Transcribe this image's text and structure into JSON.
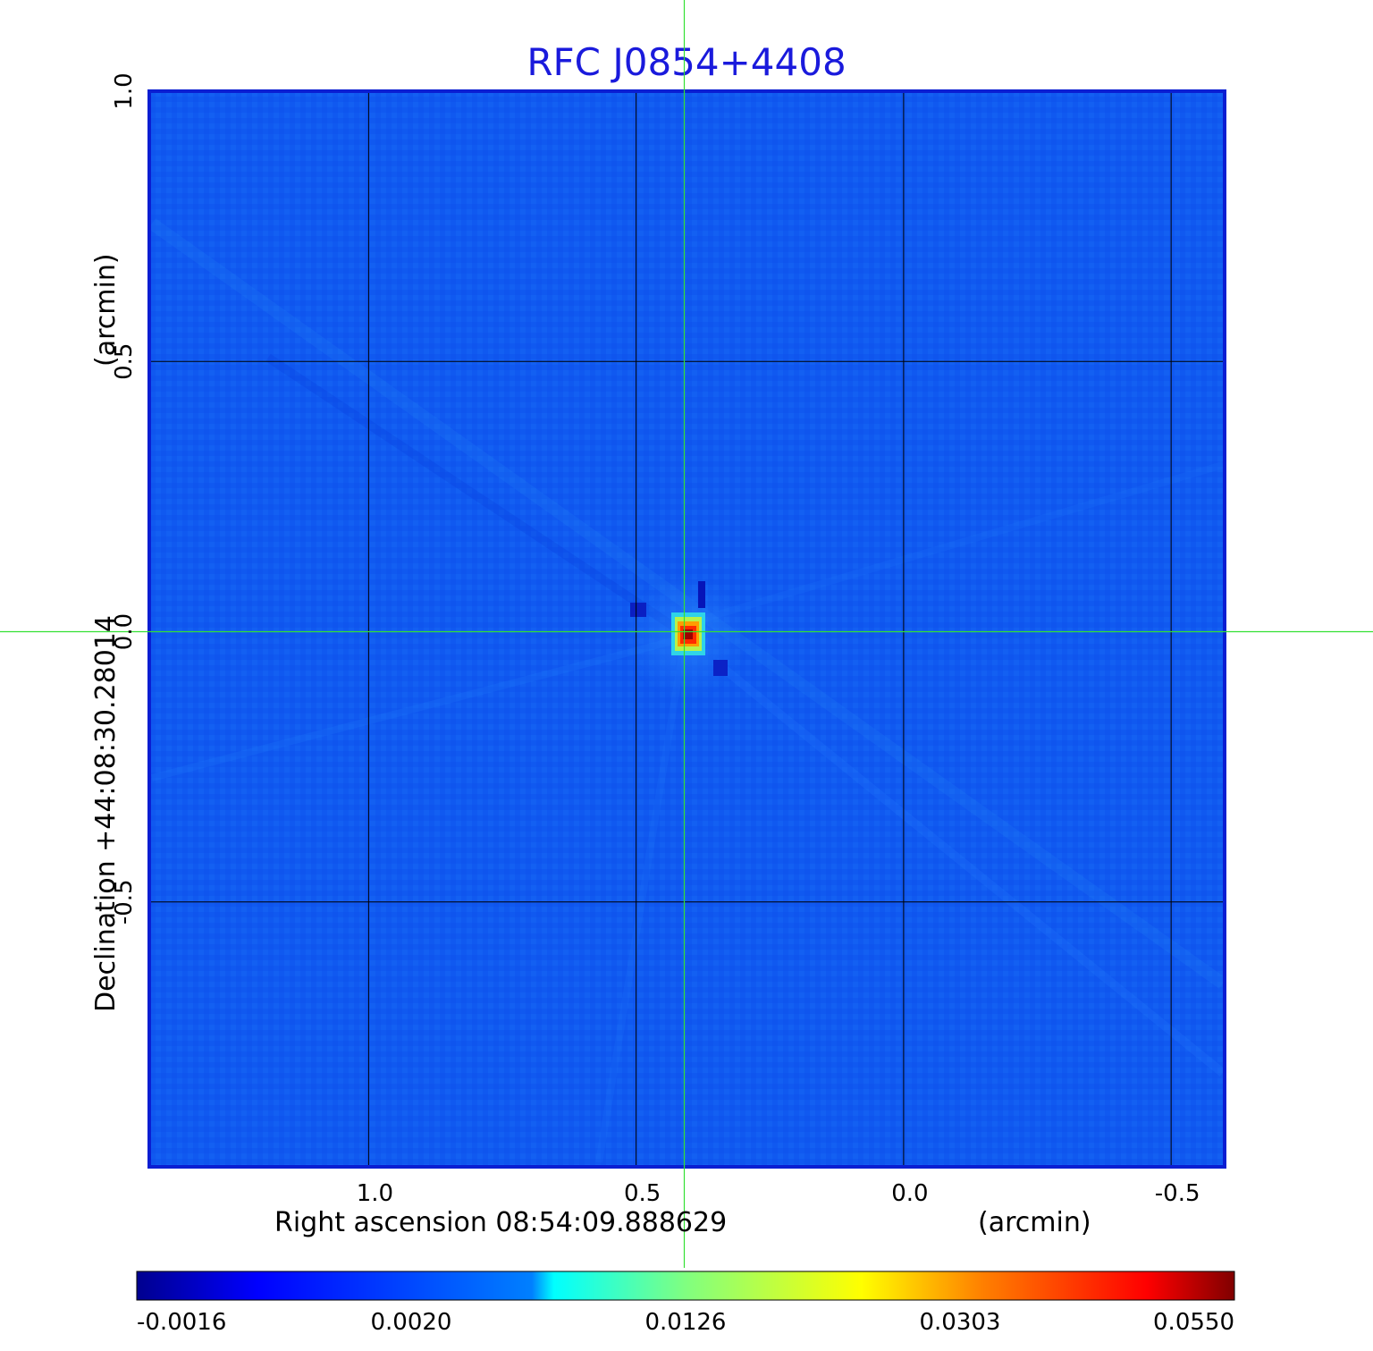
{
  "chart_data": {
    "type": "heatmap",
    "title": "RFC J0854+4408",
    "colors": {
      "title": "#1a1adc",
      "frame": "#0a1ed2",
      "background_map": "#0f55f0",
      "crosshair": "#33e033",
      "grid": "#000000"
    },
    "xaxis": {
      "label": "Right ascension  08:54:09.888629",
      "unit_label": "(arcmin)",
      "ticks": [
        {
          "value": 1.0,
          "label": "1.0"
        },
        {
          "value": 0.5,
          "label": "0.5"
        },
        {
          "value": 0.0,
          "label": "0.0"
        },
        {
          "value": -0.5,
          "label": "-0.5"
        }
      ],
      "range": [
        1.41,
        -0.6
      ],
      "reversed": true
    },
    "yaxis": {
      "label": "Declination  +44:08:30.28014",
      "unit_label": "(arcmin)",
      "ticks": [
        {
          "value": 1.0,
          "label": "1.0"
        },
        {
          "value": 0.5,
          "label": "0.5"
        },
        {
          "value": 0.0,
          "label": "0.0"
        },
        {
          "value": -0.5,
          "label": "-0.5"
        }
      ],
      "range": [
        -0.99,
        1.0
      ]
    },
    "grid": true,
    "crosshair": {
      "x": 0.41,
      "y": 0.0
    },
    "source_peak": {
      "x": 0.41,
      "y": 0.0,
      "peak_value": 0.055
    },
    "colorbar": {
      "orientation": "horizontal",
      "placement": "bottom",
      "tick_labels": [
        "-0.0016",
        "0.0020",
        "0.0126",
        "0.0303",
        "0.0550"
      ],
      "colormap": [
        "#00008f",
        "#0000ff",
        "#0080ff",
        "#00ffff",
        "#80ff80",
        "#ffff00",
        "#ff8000",
        "#ff0000",
        "#800000"
      ]
    }
  }
}
